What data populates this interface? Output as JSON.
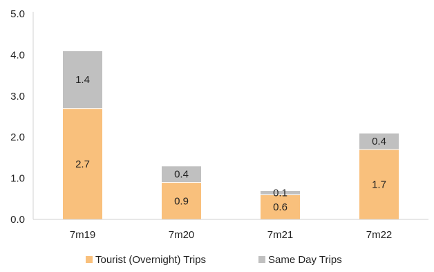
{
  "chart_data": {
    "type": "bar",
    "stacked": true,
    "categories": [
      "7m19",
      "7m20",
      "7m21",
      "7m22"
    ],
    "series": [
      {
        "name": "Tourist (Overnight) Trips",
        "values": [
          2.7,
          0.9,
          0.6,
          1.7
        ],
        "labels": [
          "2.7",
          "0.9",
          "0.6",
          "1.7"
        ],
        "color": "#F9C07C"
      },
      {
        "name": "Same Day Trips",
        "values": [
          1.4,
          0.4,
          0.1,
          0.4
        ],
        "labels": [
          "1.4",
          "0.4",
          "0.1",
          "0.4"
        ],
        "color": "#C0C0C0"
      }
    ],
    "ylim": [
      0,
      5
    ],
    "yticks": [
      "0.0",
      "1.0",
      "2.0",
      "3.0",
      "4.0",
      "5.0"
    ],
    "title": "",
    "xlabel": "",
    "ylabel": "",
    "grid": false,
    "legend_position": "bottom-center"
  }
}
